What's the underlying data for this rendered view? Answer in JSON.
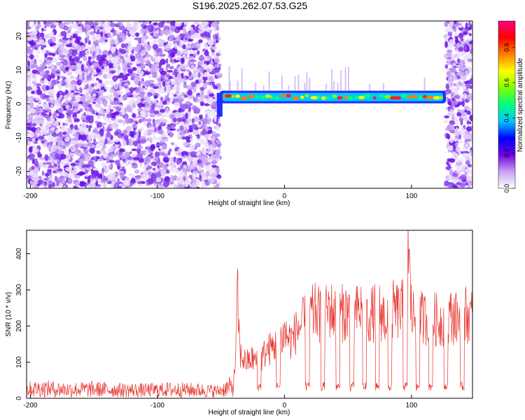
{
  "title": "S196.2025.262.07.53.G25",
  "colors": {
    "signal": "#e8352f",
    "noise": "#7c2ff0",
    "axis": "#000000",
    "background": "#ffffff"
  },
  "chart_data": [
    {
      "type": "heatmap",
      "title": "S196.2025.262.07.53.G25",
      "xlabel": "Height of straight line (km)",
      "ylabel": "Frequency (Hz)",
      "xlim": [
        -203,
        148
      ],
      "ylim": [
        -25,
        24.5
      ],
      "xticks": [
        -200,
        -100,
        0,
        100
      ],
      "yticks": [
        -20,
        -10,
        0,
        10,
        20
      ],
      "regions": [
        {
          "name": "noise",
          "x_range": [
            -203,
            -51
          ]
        },
        {
          "name": "signal-band",
          "x_range": [
            -51,
            127
          ],
          "freq_hz_approx": 2
        },
        {
          "name": "noise",
          "x_range": [
            127,
            148
          ]
        }
      ],
      "colorbar": {
        "label": "Normalized spectral amplitude",
        "range": [
          0,
          0.95
        ],
        "ticks": [
          "0.0",
          "0.2",
          "0.4",
          "0.6",
          "0.8"
        ],
        "colormap": [
          "#ffffff",
          "#c8a0f0",
          "#7000e0",
          "#0000ff",
          "#00c8ff",
          "#00ff80",
          "#80ff00",
          "#ffff00",
          "#ff8000",
          "#ff0000",
          "#ff0080"
        ]
      }
    },
    {
      "type": "line",
      "xlabel": "Height of straight line (km)",
      "ylabel": "SNR (10 * v/v)",
      "xlim": [
        -203,
        148
      ],
      "ylim": [
        0,
        465
      ],
      "xticks": [
        -200,
        -100,
        0,
        100
      ],
      "yticks": [
        0,
        100,
        200,
        300,
        400
      ],
      "series": [
        {
          "name": "SNR",
          "x": [
            -203,
            -190,
            -170,
            -150,
            -130,
            -110,
            -90,
            -70,
            -52,
            -40,
            -38,
            -37,
            -35,
            -30,
            -25,
            -20,
            -15,
            -10,
            -5,
            0,
            5,
            10,
            15,
            20,
            25,
            30,
            35,
            40,
            45,
            50,
            55,
            60,
            65,
            70,
            75,
            80,
            85,
            90,
            95,
            97,
            100,
            105,
            110,
            115,
            120,
            125,
            130,
            135,
            140,
            148
          ],
          "values": [
            25,
            27,
            24,
            25,
            23,
            22,
            24,
            23,
            20,
            35,
            150,
            290,
            120,
            100,
            110,
            95,
            130,
            140,
            150,
            180,
            160,
            190,
            210,
            230,
            240,
            220,
            250,
            230,
            235,
            240,
            230,
            245,
            225,
            235,
            240,
            220,
            245,
            240,
            250,
            445,
            230,
            225,
            220,
            230,
            215,
            210,
            230,
            220,
            235,
            225
          ]
        }
      ],
      "dips_x": [
        -20,
        -5,
        18,
        30,
        42,
        53,
        63,
        73,
        83,
        95,
        105,
        115,
        127,
        140
      ]
    }
  ]
}
